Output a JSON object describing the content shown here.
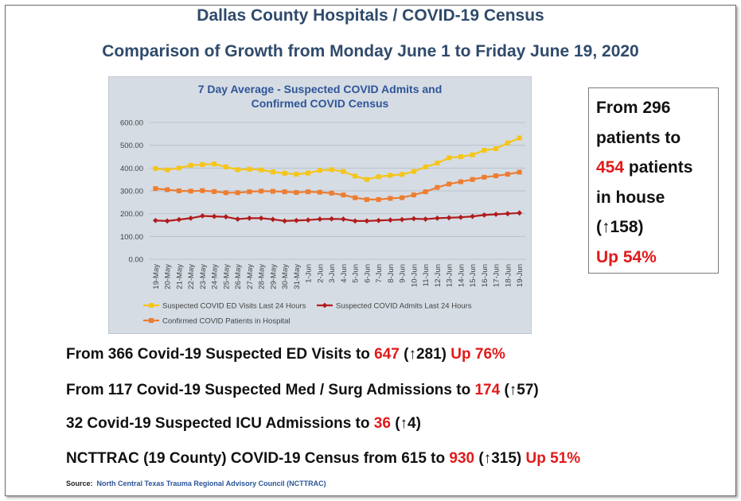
{
  "header": {
    "title": "Dallas County Hospitals / COVID-19 Census",
    "subtitle": "Comparison of Growth from Monday June 1 to Friday June 19, 2020"
  },
  "callout": {
    "line1": "From 296",
    "line2": "patients to",
    "line3_value": "454",
    "line3_text": " patients",
    "line4": "in house",
    "line5": "(↑158)",
    "line6": "Up 54%"
  },
  "stats": [
    {
      "pre": "From 366 Covid-19 Suspected ED Visits to ",
      "value": "647",
      "delta": " (↑281) ",
      "up": "Up 76%"
    },
    {
      "pre": "From 117 Covid-19 Suspected Med / Surg Admissions to ",
      "value": "174",
      "delta": " (↑57)",
      "up": ""
    },
    {
      "pre": "32 Covid-19 Suspected ICU Admissions to ",
      "value": "36",
      "delta": " (↑4)",
      "up": ""
    },
    {
      "pre": "NCTTRAC (19 County) COVID-19 Census from 615 to ",
      "value": "930",
      "delta": " (↑315) ",
      "up": "Up 51%"
    }
  ],
  "source": {
    "label": "Source:",
    "value": "North Central Texas Trauma Regional Advisory Council (NCTTRAC)"
  },
  "chart_data": {
    "type": "line",
    "title": "7 Day Average - Suspected COVID Admits and Confirmed COVID Census",
    "xlabel": "",
    "ylabel": "",
    "ylim": [
      0,
      600
    ],
    "yticks": [
      "0.00",
      "100.00",
      "200.00",
      "300.00",
      "400.00",
      "500.00",
      "600.00"
    ],
    "grid": true,
    "legend_position": "bottom",
    "categories": [
      "19-May",
      "20-May",
      "21-May",
      "22-May",
      "23-May",
      "24-May",
      "25-May",
      "26-May",
      "27-May",
      "28-May",
      "29-May",
      "30-May",
      "31-May",
      "1-Jun",
      "2-Jun",
      "3-Jun",
      "4-Jun",
      "5-Jun",
      "6-Jun",
      "7-Jun",
      "8-Jun",
      "9-Jun",
      "10-Jun",
      "11-Jun",
      "12-Jun",
      "13-Jun",
      "14-Jun",
      "15-Jun",
      "16-Jun",
      "17-Jun",
      "18-Jun",
      "19-Jun"
    ],
    "series": [
      {
        "name": "Suspected COVID ED Visits Last 24 Hours",
        "color": "#f5c518",
        "marker": "square",
        "values": [
          398,
          392,
          400,
          412,
          415,
          418,
          405,
          393,
          395,
          392,
          383,
          377,
          373,
          378,
          390,
          393,
          385,
          365,
          350,
          362,
          368,
          372,
          385,
          405,
          422,
          445,
          450,
          458,
          478,
          485,
          510,
          532
        ]
      },
      {
        "name": "Suspected COVID Admits Last 24 Hours",
        "color": "#b01c1c",
        "marker": "diamond",
        "values": [
          170,
          168,
          174,
          180,
          190,
          188,
          186,
          176,
          180,
          180,
          175,
          168,
          170,
          172,
          176,
          177,
          176,
          168,
          168,
          170,
          172,
          174,
          178,
          176,
          180,
          182,
          184,
          188,
          194,
          197,
          200,
          203
        ]
      },
      {
        "name": "Confirmed COVID Patients in Hospital",
        "color": "#ed7d31",
        "marker": "square",
        "values": [
          310,
          305,
          300,
          299,
          301,
          297,
          292,
          292,
          296,
          299,
          298,
          296,
          293,
          296,
          294,
          290,
          282,
          270,
          262,
          262,
          267,
          270,
          282,
          296,
          315,
          330,
          340,
          350,
          360,
          366,
          373,
          382
        ]
      }
    ]
  }
}
